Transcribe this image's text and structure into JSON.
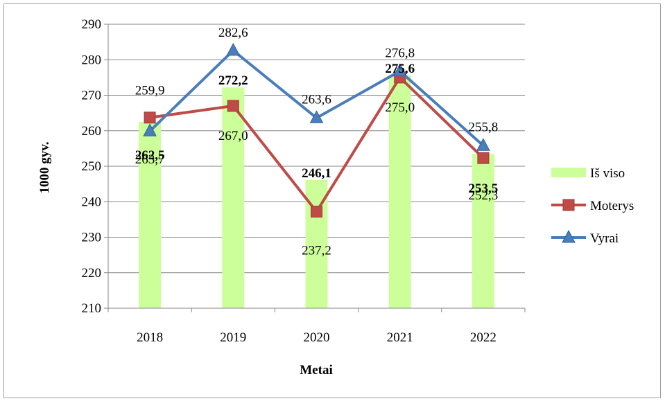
{
  "chart_data": {
    "type": "bar",
    "xlabel": "Metai",
    "ylabel": "1000 gyv.",
    "ylim": [
      210,
      290
    ],
    "yticks": [
      210,
      220,
      230,
      240,
      250,
      260,
      270,
      280,
      290
    ],
    "categories": [
      "2018",
      "2019",
      "2020",
      "2021",
      "2022"
    ],
    "grid": true,
    "legend_position": "right",
    "series": [
      {
        "name": "Iš viso",
        "type": "bar",
        "color": "#ccff99",
        "values": [
          262.5,
          272.2,
          246.1,
          275.6,
          253.5
        ],
        "labels": [
          "262,5",
          "272,2",
          "246,1",
          "275,6",
          "253,5"
        ]
      },
      {
        "name": "Moterys",
        "type": "line",
        "marker": "square",
        "color": "#be4b48",
        "values": [
          263.7,
          267.0,
          237.2,
          275.0,
          252.3
        ],
        "labels": [
          "263,7",
          "267,0",
          "237,2",
          "275,0",
          "252,3"
        ]
      },
      {
        "name": "Vyrai",
        "type": "line",
        "marker": "triangle",
        "color": "#4a7ebb",
        "values": [
          259.9,
          282.6,
          263.6,
          276.8,
          255.8
        ],
        "labels": [
          "259,9",
          "282,6",
          "263,6",
          "276,8",
          "255,8"
        ]
      }
    ]
  }
}
